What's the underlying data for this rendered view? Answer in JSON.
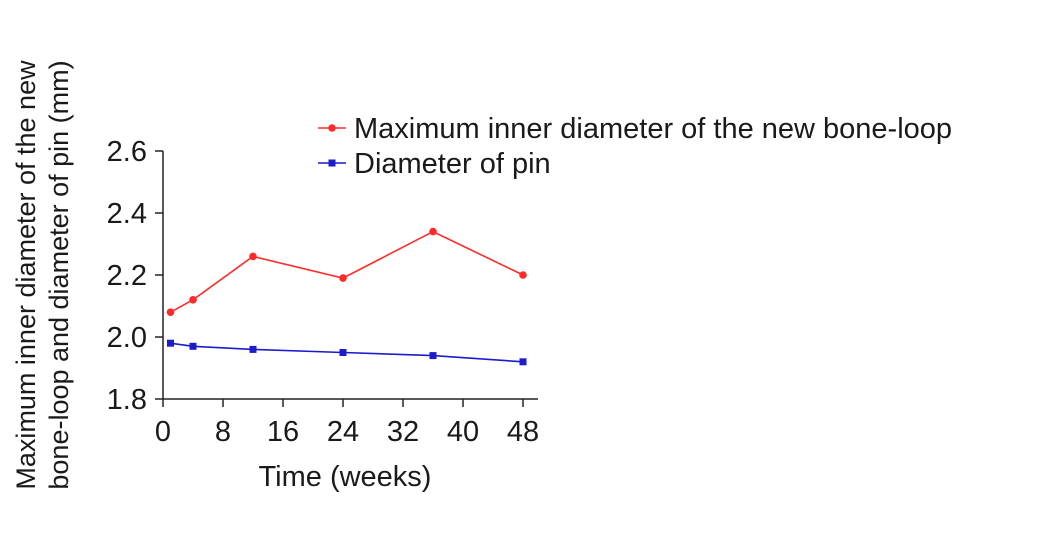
{
  "chart_data": {
    "type": "line",
    "title": "",
    "xlabel": "Time (weeks)",
    "ylabel": [
      "Maximum inner diameter of the new",
      "bone-loop and diameter of pin (mm)"
    ],
    "xlim": [
      0,
      50
    ],
    "ylim": [
      1.8,
      2.6
    ],
    "x_ticks": [
      0,
      8,
      16,
      24,
      32,
      40,
      48
    ],
    "x_tick_labels": [
      "0",
      "8",
      "16",
      "24",
      "32",
      "40",
      "48"
    ],
    "y_ticks": [
      1.8,
      2.0,
      2.2,
      2.4,
      2.6
    ],
    "y_tick_labels": [
      "1.8",
      "2.0",
      "2.2",
      "2.4",
      "2.6"
    ],
    "grid": false,
    "legend_position": "top-right",
    "series": [
      {
        "name": "Maximum inner diameter of the new bone-loop",
        "color": "#ff2a2a",
        "marker": "circle",
        "x": [
          1,
          4,
          12,
          24,
          36,
          48
        ],
        "y": [
          2.08,
          2.12,
          2.26,
          2.19,
          2.34,
          2.2
        ]
      },
      {
        "name": "Diameter of pin",
        "color": "#1c1ccc",
        "marker": "square",
        "x": [
          1,
          4,
          12,
          24,
          36,
          48
        ],
        "y": [
          1.98,
          1.97,
          1.96,
          1.95,
          1.94,
          1.92
        ]
      }
    ]
  }
}
